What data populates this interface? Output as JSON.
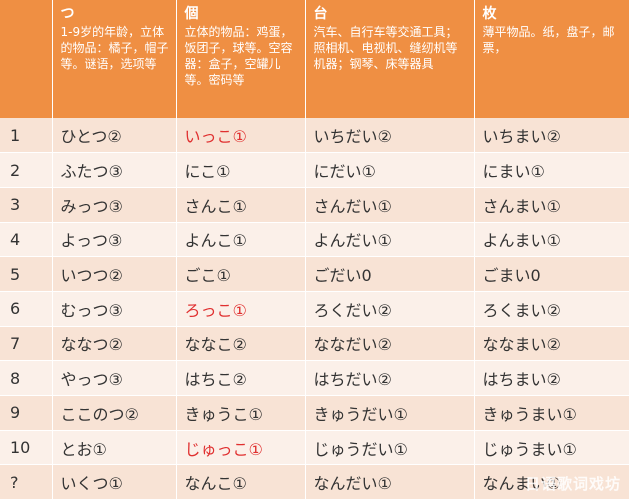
{
  "headers": [
    {
      "kanji": "",
      "desc": ""
    },
    {
      "kanji": "つ",
      "desc": "1-9岁的年龄，立体的物品：橘子，帽子等。谜语，选项等"
    },
    {
      "kanji": "個",
      "desc": "立体的物品：鸡蛋，饭团子，球等。空容器：盒子，空罐儿等。密码等"
    },
    {
      "kanji": "台",
      "desc": "汽车、自行车等交通工具；照相机、电视机、缝纫机等机器；钢琴、床等器具"
    },
    {
      "kanji": "枚",
      "desc": "薄平物品。纸，盘子，邮票，"
    }
  ],
  "rows": [
    {
      "num": "1",
      "tsu": "ひとつ②",
      "ko": "いっこ①",
      "dai": "いちだい②",
      "mai": "いちまい②"
    },
    {
      "num": "2",
      "tsu": "ふたつ③",
      "ko": "にこ①",
      "dai": "にだい①",
      "mai": "にまい①"
    },
    {
      "num": "3",
      "tsu": "みっつ③",
      "ko": "さんこ①",
      "dai": "さんだい①",
      "mai": "さんまい①"
    },
    {
      "num": "4",
      "tsu": "よっつ③",
      "ko": "よんこ①",
      "dai": "よんだい①",
      "mai": "よんまい①"
    },
    {
      "num": "5",
      "tsu": "いつつ②",
      "ko": "ごこ①",
      "dai": "ごだい0",
      "mai": "ごまい0"
    },
    {
      "num": "6",
      "tsu": "むっつ③",
      "ko": "ろっこ①",
      "dai": "ろくだい②",
      "mai": "ろくまい②"
    },
    {
      "num": "7",
      "tsu": "ななつ②",
      "ko": "ななこ②",
      "dai": "ななだい②",
      "mai": "ななまい②"
    },
    {
      "num": "8",
      "tsu": "やっつ③",
      "ko": "はちこ②",
      "dai": "はちだい②",
      "mai": "はちまい②"
    },
    {
      "num": "9",
      "tsu": "ここのつ②",
      "ko": "きゅうこ①",
      "dai": "きゅうだい①",
      "mai": "きゅうまい①"
    },
    {
      "num": "10",
      "tsu": "とお①",
      "ko": "じゅっこ①",
      "dai": "じゅうだい①",
      "mai": "じゅうまい①"
    },
    {
      "num": "?",
      "tsu": "いくつ①",
      "ko": "なんこ①",
      "dai": "なんだい①",
      "mai": "なんまい①"
    }
  ],
  "watermark": "日语歌词戏坊"
}
